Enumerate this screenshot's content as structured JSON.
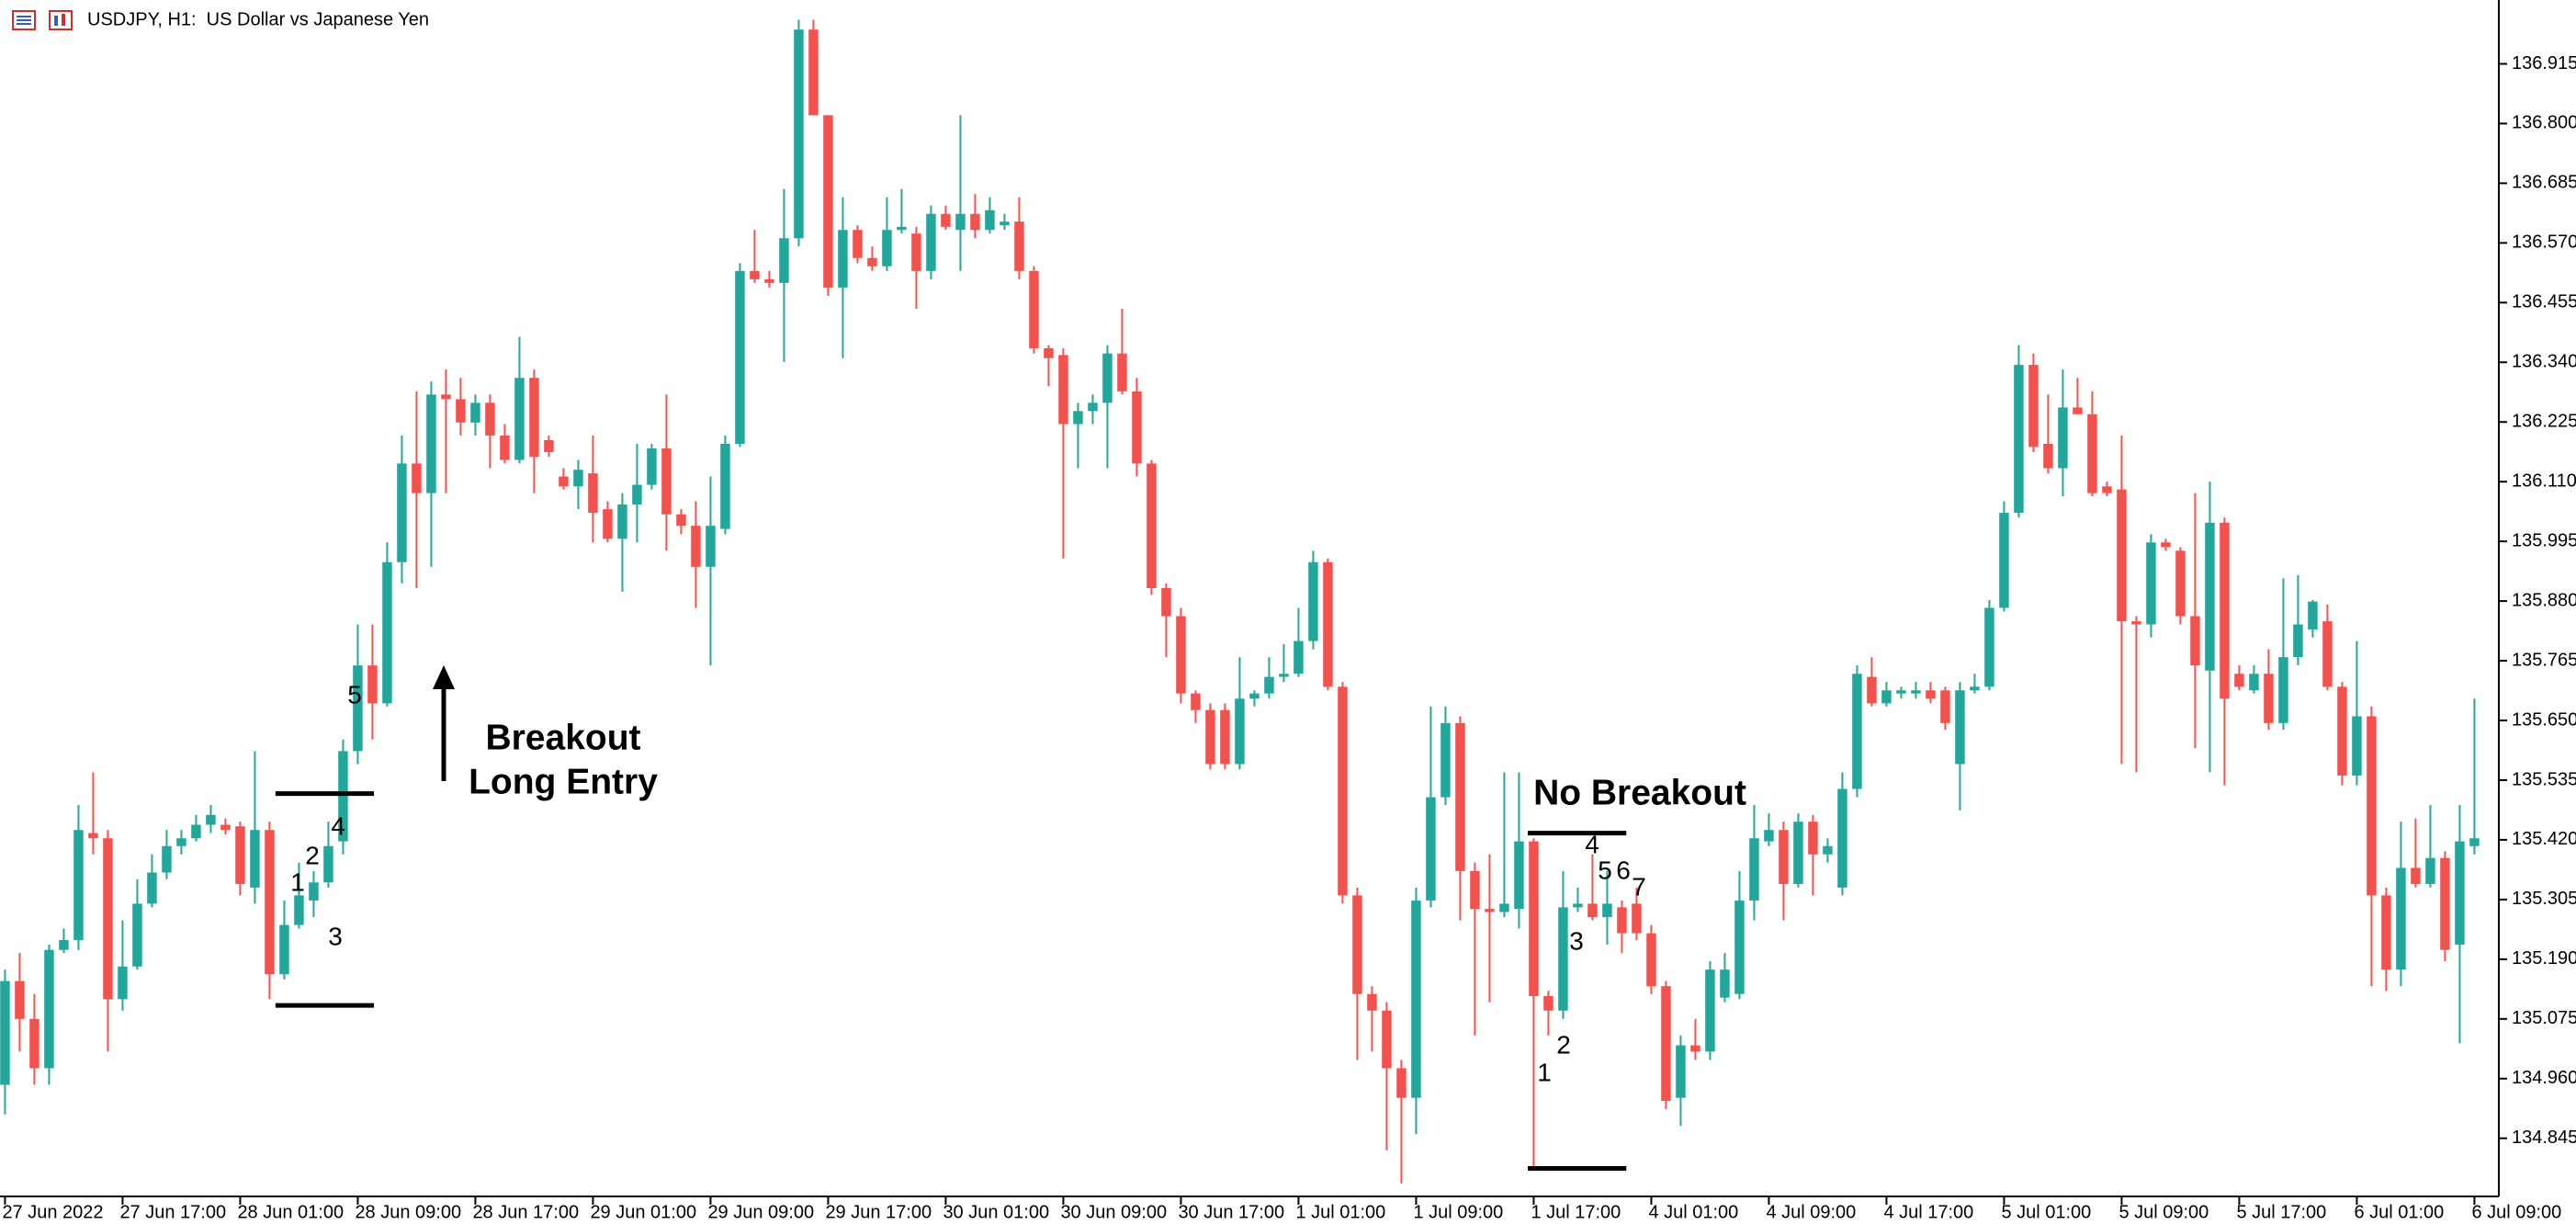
{
  "chart_data": {
    "type": "candlestick",
    "title": "USDJPY, H1:  US Dollar vs Japanese Yen",
    "up_color": "#26a69a",
    "down_color": "#ef5350",
    "ylim": [
      134.733,
      137.038
    ],
    "xlim": [
      -0.34,
      169.66
    ],
    "yticks": [
      136.915,
      {
        "value": 136.8,
        "label": "136.800"
      },
      136.685,
      {
        "value": 136.57,
        "label": "136.570"
      },
      136.455,
      {
        "value": 136.34,
        "label": "136.340"
      },
      136.225,
      {
        "value": 136.11,
        "label": "136.110"
      },
      135.995,
      {
        "value": 135.88,
        "label": "135.880"
      },
      135.765,
      {
        "value": 135.65,
        "label": "135.650"
      },
      135.535,
      {
        "value": 135.42,
        "label": "135.420"
      },
      135.305,
      {
        "value": 135.19,
        "label": "135.190"
      },
      135.075,
      {
        "value": 134.96,
        "label": "134.960"
      },
      134.845
    ],
    "xticks": [
      {
        "value": 0,
        "label": "27 Jun 2022"
      },
      {
        "value": 8,
        "label": "27 Jun 17:00"
      },
      {
        "value": 16,
        "label": "28 Jun 01:00"
      },
      {
        "value": 24,
        "label": "28 Jun 09:00"
      },
      {
        "value": 32,
        "label": "28 Jun 17:00"
      },
      {
        "value": 40,
        "label": "29 Jun 01:00"
      },
      {
        "value": 48,
        "label": "29 Jun 09:00"
      },
      {
        "value": 56,
        "label": "29 Jun 17:00"
      },
      {
        "value": 64,
        "label": "30 Jun 01:00"
      },
      {
        "value": 72,
        "label": "30 Jun 09:00"
      },
      {
        "value": 80,
        "label": "30 Jun 17:00"
      },
      {
        "value": 88,
        "label": "1 Jul 01:00"
      },
      {
        "value": 96,
        "label": "1 Jul 09:00"
      },
      {
        "value": 104,
        "label": "1 Jul 17:00"
      },
      {
        "value": 112,
        "label": "4 Jul 01:00"
      },
      {
        "value": 120,
        "label": "4 Jul 09:00"
      },
      {
        "value": 128,
        "label": "4 Jul 17:00"
      },
      {
        "value": 136,
        "label": "5 Jul 01:00"
      },
      {
        "value": 144,
        "label": "5 Jul 09:00"
      },
      {
        "value": 152,
        "label": "5 Jul 17:00"
      },
      {
        "value": 160,
        "label": "6 Jul 01:00"
      },
      {
        "value": 168,
        "label": "6 Jul 09:00"
      }
    ],
    "open": [
      134.948,
      135.148,
      135.075,
      134.98,
      135.208,
      135.227,
      135.433,
      135.423,
      135.113,
      135.176,
      135.297,
      135.357,
      135.408,
      135.423,
      135.449,
      135.449,
      135.446,
      135.328,
      135.439,
      135.161,
      135.256,
      135.303,
      135.338,
      135.417,
      135.591,
      135.756,
      135.683,
      135.955,
      136.145,
      136.088,
      136.278,
      136.269,
      136.224,
      136.262,
      136.199,
      136.152,
      136.31,
      136.19,
      136.12,
      136.101,
      136.126,
      136.057,
      136.0,
      136.066,
      136.104,
      136.174,
      136.047,
      136.025,
      135.946,
      136.019,
      136.183,
      136.516,
      136.5,
      136.493,
      136.579,
      136.981,
      136.816,
      136.484,
      136.595,
      136.541,
      136.525,
      136.595,
      136.588,
      136.516,
      136.626,
      136.595,
      136.626,
      136.595,
      136.604,
      136.611,
      136.516,
      136.367,
      136.354,
      136.221,
      136.246,
      136.262,
      136.357,
      136.284,
      136.145,
      135.905,
      135.851,
      135.702,
      135.67,
      135.67,
      135.566,
      135.692,
      135.702,
      135.734,
      135.74,
      135.803,
      135.955,
      135.715,
      135.313,
      135.123,
      135.091,
      134.98,
      134.923,
      135.303,
      135.502,
      135.645,
      135.36,
      135.287,
      135.281,
      135.287,
      135.417,
      135.119,
      135.091,
      135.29,
      135.297,
      135.271,
      135.29,
      135.297,
      135.24,
      135.138,
      134.923,
      135.024,
      135.012,
      135.116,
      135.123,
      135.303,
      135.417,
      135.439,
      135.335,
      135.455,
      135.392,
      135.328,
      135.518,
      135.734,
      135.683,
      135.702,
      135.702,
      135.708,
      135.708,
      135.566,
      135.708,
      135.715,
      135.867,
      136.05,
      136.335,
      136.183,
      136.136,
      136.253,
      136.24,
      136.101,
      136.095,
      135.841,
      135.835,
      135.993,
      135.977,
      135.851,
      135.746,
      136.031,
      135.74,
      135.708,
      135.74,
      135.645,
      135.772,
      135.825,
      135.841,
      135.715,
      135.544,
      135.658,
      135.313,
      135.17,
      135.366,
      135.335,
      135.385,
      135.218,
      135.408
    ],
    "high": [
      135.17,
      135.202,
      135.123,
      135.218,
      135.249,
      135.487,
      135.55,
      135.439,
      135.265,
      135.344,
      135.392,
      135.439,
      135.439,
      135.468,
      135.487,
      135.461,
      135.455,
      135.591,
      135.455,
      135.303,
      135.376,
      135.36,
      135.455,
      135.613,
      135.835,
      135.835,
      135.993,
      136.199,
      136.284,
      136.303,
      136.326,
      136.31,
      136.278,
      136.278,
      136.221,
      136.389,
      136.326,
      136.199,
      136.136,
      136.152,
      136.199,
      136.072,
      136.088,
      136.183,
      136.183,
      136.278,
      136.057,
      136.072,
      136.12,
      136.199,
      136.531,
      136.595,
      136.516,
      136.674,
      137.0,
      137.0,
      136.816,
      136.658,
      136.604,
      136.563,
      136.658,
      136.674,
      136.601,
      136.642,
      136.642,
      136.816,
      136.664,
      136.658,
      136.626,
      136.658,
      136.525,
      136.373,
      136.367,
      136.262,
      136.278,
      136.373,
      136.443,
      136.31,
      136.152,
      135.914,
      135.867,
      135.708,
      135.683,
      135.683,
      135.772,
      135.708,
      135.772,
      135.797,
      135.867,
      135.977,
      135.962,
      135.724,
      135.328,
      135.138,
      135.107,
      134.996,
      135.328,
      135.677,
      135.677,
      135.658,
      135.376,
      135.392,
      135.55,
      135.55,
      135.423,
      135.129,
      135.36,
      135.328,
      135.392,
      135.36,
      135.303,
      135.328,
      135.256,
      135.148,
      135.043,
      135.075,
      135.186,
      135.202,
      135.36,
      135.487,
      135.471,
      135.455,
      135.471,
      135.468,
      135.423,
      135.55,
      135.756,
      135.772,
      135.724,
      135.715,
      135.724,
      135.724,
      135.715,
      135.724,
      135.74,
      135.882,
      136.072,
      136.373,
      136.357,
      136.278,
      136.326,
      136.31,
      136.284,
      136.11,
      136.199,
      135.851,
      136.009,
      136.0,
      135.984,
      136.088,
      136.11,
      136.041,
      135.756,
      135.756,
      135.787,
      135.924,
      135.93,
      135.882,
      135.873,
      135.724,
      135.803,
      135.677,
      135.328,
      135.455,
      135.461,
      135.487,
      135.398,
      135.487,
      135.692
    ],
    "low": [
      134.891,
      135.012,
      134.948,
      134.948,
      135.202,
      135.208,
      135.392,
      135.012,
      135.091,
      135.17,
      135.29,
      135.344,
      135.392,
      135.417,
      135.433,
      135.43,
      135.313,
      135.297,
      135.113,
      135.151,
      135.249,
      135.271,
      135.328,
      135.392,
      135.566,
      135.613,
      135.677,
      135.914,
      135.905,
      135.946,
      136.088,
      136.199,
      136.199,
      136.136,
      136.145,
      136.145,
      136.088,
      136.158,
      136.095,
      136.057,
      135.993,
      135.993,
      135.898,
      135.993,
      136.095,
      135.977,
      136.009,
      135.867,
      135.756,
      136.009,
      136.177,
      136.493,
      136.484,
      136.341,
      136.563,
      136.816,
      136.468,
      136.348,
      136.531,
      136.516,
      136.516,
      136.588,
      136.443,
      136.5,
      136.595,
      136.516,
      136.579,
      136.588,
      136.595,
      136.5,
      136.357,
      136.294,
      135.962,
      136.136,
      136.221,
      136.136,
      136.278,
      136.12,
      135.892,
      135.772,
      135.683,
      135.645,
      135.556,
      135.556,
      135.556,
      135.677,
      135.692,
      135.724,
      135.734,
      135.787,
      135.708,
      135.297,
      134.996,
      135.012,
      134.822,
      134.758,
      134.853,
      135.29,
      135.487,
      135.265,
      135.043,
      135.107,
      135.271,
      135.249,
      134.79,
      135.043,
      135.075,
      135.281,
      135.265,
      135.218,
      135.202,
      135.227,
      135.123,
      134.901,
      134.869,
      134.996,
      134.996,
      135.107,
      135.113,
      135.265,
      135.408,
      135.265,
      135.328,
      135.313,
      135.376,
      135.313,
      135.502,
      135.677,
      135.677,
      135.692,
      135.692,
      135.683,
      135.632,
      135.477,
      135.702,
      135.708,
      135.86,
      136.041,
      136.167,
      136.126,
      136.082,
      136.24,
      136.082,
      136.082,
      135.566,
      135.55,
      135.81,
      135.977,
      135.835,
      135.597,
      135.55,
      135.525,
      135.708,
      135.702,
      135.632,
      135.632,
      135.756,
      135.81,
      135.708,
      135.525,
      135.525,
      135.138,
      135.129,
      135.138,
      135.328,
      135.328,
      135.186,
      135.028,
      135.392
    ],
    "close": [
      135.148,
      135.075,
      134.98,
      135.208,
      135.227,
      135.439,
      135.423,
      135.113,
      135.176,
      135.297,
      135.357,
      135.408,
      135.423,
      135.449,
      135.468,
      135.439,
      135.335,
      135.439,
      135.161,
      135.256,
      135.313,
      135.338,
      135.408,
      135.591,
      135.756,
      135.683,
      135.955,
      136.145,
      136.088,
      136.278,
      136.269,
      136.224,
      136.262,
      136.199,
      136.152,
      136.31,
      136.158,
      136.167,
      136.101,
      136.133,
      136.05,
      136.0,
      136.066,
      136.104,
      136.174,
      136.047,
      136.025,
      135.946,
      136.025,
      136.183,
      136.516,
      136.5,
      136.493,
      136.579,
      136.981,
      136.816,
      136.484,
      136.595,
      136.541,
      136.525,
      136.595,
      136.601,
      136.516,
      136.626,
      136.601,
      136.626,
      136.595,
      136.633,
      136.611,
      136.516,
      136.367,
      136.348,
      136.221,
      136.246,
      136.262,
      136.357,
      136.284,
      136.145,
      135.905,
      135.851,
      135.702,
      135.67,
      135.566,
      135.566,
      135.692,
      135.702,
      135.734,
      135.74,
      135.803,
      135.955,
      135.715,
      135.313,
      135.123,
      135.091,
      134.98,
      134.923,
      135.303,
      135.502,
      135.645,
      135.36,
      135.287,
      135.281,
      135.297,
      135.417,
      135.119,
      135.091,
      135.29,
      135.297,
      135.271,
      135.297,
      135.24,
      135.24,
      135.138,
      134.917,
      135.024,
      135.012,
      135.17,
      135.17,
      135.303,
      135.423,
      135.439,
      135.335,
      135.455,
      135.392,
      135.408,
      135.518,
      135.74,
      135.683,
      135.708,
      135.708,
      135.708,
      135.692,
      135.645,
      135.708,
      135.715,
      135.867,
      136.05,
      136.335,
      136.177,
      136.136,
      136.253,
      136.24,
      136.088,
      136.088,
      135.841,
      135.835,
      135.993,
      135.984,
      135.851,
      135.756,
      136.031,
      135.692,
      135.715,
      135.74,
      135.645,
      135.772,
      135.835,
      135.879,
      135.715,
      135.544,
      135.658,
      135.313,
      135.17,
      135.366,
      135.335,
      135.385,
      135.208,
      135.417,
      135.423
    ],
    "levels": [
      {
        "value": 135.509,
        "from": 18.4,
        "to": 25.1
      },
      {
        "value": 135.101,
        "from": 18.4,
        "to": 25.1
      },
      {
        "value": 135.433,
        "from": 103.6,
        "to": 110.3
      },
      {
        "value": 134.787,
        "from": 103.6,
        "to": 110.3
      }
    ],
    "annotations": {
      "breakout": [
        "Breakout",
        "Long Entry"
      ],
      "no_breakout": "No Breakout",
      "count_a": [
        "1",
        "2",
        "3",
        "4",
        "5"
      ],
      "count_b": [
        "1",
        "2",
        "3",
        "4",
        "5",
        "6",
        "7"
      ]
    }
  }
}
